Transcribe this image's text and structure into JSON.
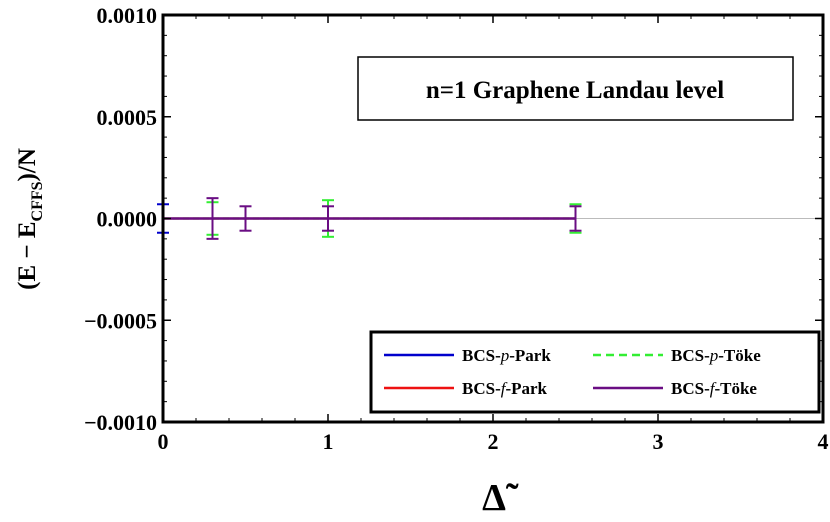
{
  "chart_data": {
    "type": "scatter",
    "title": "n=1 Graphene Landau level",
    "xlabel": "Δ̃",
    "ylabel": {
      "main": "(E − E",
      "sub": "CFFS",
      "tail": ")/N"
    },
    "xlim": [
      0,
      4
    ],
    "ylim": [
      -0.001,
      0.001
    ],
    "x_ticks": [
      0,
      1,
      2,
      3,
      4
    ],
    "x_tick_labels": [
      "0",
      "1",
      "2",
      "3",
      "4"
    ],
    "y_ticks": [
      0.001,
      0.0005,
      0,
      -0.0005,
      -0.001
    ],
    "y_tick_labels": [
      "0.0010",
      "0.0005",
      "0.0000",
      "−0.0005",
      "−0.0010"
    ],
    "grid": false,
    "zero_line": true,
    "legend_position": "bottom-right",
    "legend": [
      {
        "name": "BCS-p-Park",
        "pre": "BCS-",
        "ital": "p",
        "post": "-Park",
        "color": "#0000cc",
        "dash": "solid"
      },
      {
        "name": "BCS-p-Töke",
        "pre": "BCS-",
        "ital": "p",
        "post": "-Töke",
        "color": "#33ee33",
        "dash": "dashed"
      },
      {
        "name": "BCS-f-Park",
        "pre": "BCS-",
        "ital": "f",
        "post": "-Park",
        "color": "#ee1111",
        "dash": "solid"
      },
      {
        "name": "BCS-f-Töke",
        "pre": "BCS-",
        "ital": "f",
        "post": "-Töke",
        "color": "#6a0d83",
        "dash": "solid"
      }
    ],
    "series": [
      {
        "name": "BCS-p-Park",
        "color": "#0000cc",
        "dash": "solid",
        "x": [
          0,
          2.5
        ],
        "y": [
          0,
          0
        ],
        "errorbars": [
          {
            "x": 0,
            "y": 0,
            "err": 7e-05
          }
        ]
      },
      {
        "name": "BCS-p-Töke",
        "color": "#33ee33",
        "dash": "dashed",
        "x": [
          0,
          2.5
        ],
        "y": [
          0,
          0
        ],
        "errorbars": [
          {
            "x": 0.3,
            "y": 0,
            "err": 8e-05
          },
          {
            "x": 1,
            "y": 0,
            "err": 9e-05
          },
          {
            "x": 2.5,
            "y": 0,
            "err": 7e-05
          }
        ]
      },
      {
        "name": "BCS-f-Park",
        "color": "#ee1111",
        "dash": "solid",
        "x": [
          0,
          2.5
        ],
        "y": [
          0,
          0
        ],
        "errorbars": []
      },
      {
        "name": "BCS-f-Töke",
        "color": "#6a0d83",
        "dash": "solid",
        "x": [
          0,
          2.5
        ],
        "y": [
          0,
          0
        ],
        "errorbars": [
          {
            "x": 0.3,
            "y": 0,
            "err": 0.0001
          },
          {
            "x": 0.5,
            "y": 0,
            "err": 6e-05
          },
          {
            "x": 1,
            "y": 0,
            "err": 6e-05
          },
          {
            "x": 2.5,
            "y": 0,
            "err": 6e-05
          }
        ]
      }
    ]
  }
}
